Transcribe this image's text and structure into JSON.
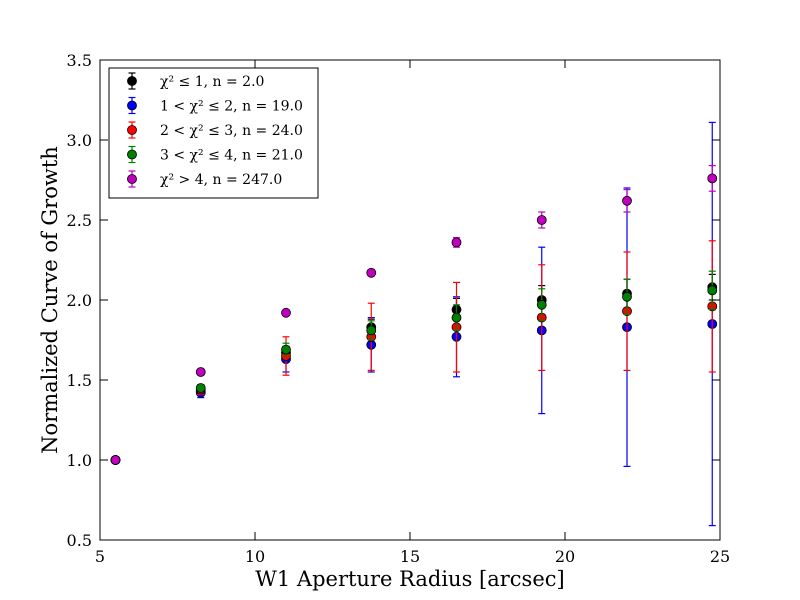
{
  "chart_data": {
    "type": "scatter",
    "title": "",
    "xlabel": "W1 Aperture Radius [arcsec]",
    "ylabel": "Normalized Curve of Growth",
    "xlim": [
      5,
      25
    ],
    "ylim": [
      0.5,
      3.5
    ],
    "xticks": [
      "5",
      "10",
      "15",
      "20",
      "25"
    ],
    "yticks": [
      "0.5",
      "1.0",
      "1.5",
      "2.0",
      "2.5",
      "3.0",
      "3.5"
    ],
    "grid": false,
    "legend_position": "top-left",
    "x": [
      5.5,
      8.25,
      11.0,
      13.75,
      16.5,
      19.25,
      22.0,
      24.75
    ],
    "series": [
      {
        "name": "χ² ≤ 1, n = 2.0",
        "color": "#000000",
        "values": [
          1.0,
          1.43,
          1.67,
          1.83,
          1.94,
          2.0,
          2.04,
          2.08
        ],
        "err": [
          0.0,
          0.01,
          0.02,
          0.05,
          0.07,
          0.09,
          0.09,
          0.08
        ]
      },
      {
        "name": "1 < χ² ≤ 2, n = 19.0",
        "color": "#0000ff",
        "values": [
          1.0,
          1.42,
          1.63,
          1.72,
          1.77,
          1.81,
          1.83,
          1.85
        ],
        "err": [
          0.0,
          0.03,
          0.08,
          0.17,
          0.25,
          0.52,
          0.87,
          1.26
        ]
      },
      {
        "name": "2 < χ² ≤ 3, n = 24.0",
        "color": "#ff0000",
        "values": [
          1.0,
          1.44,
          1.65,
          1.77,
          1.83,
          1.89,
          1.93,
          1.96
        ],
        "err": [
          0.0,
          0.03,
          0.12,
          0.21,
          0.28,
          0.33,
          0.37,
          0.41
        ]
      },
      {
        "name": "3 < χ² ≤ 4, n = 21.0",
        "color": "#008000",
        "values": [
          1.0,
          1.45,
          1.69,
          1.81,
          1.89,
          1.97,
          2.02,
          2.06
        ],
        "err": [
          0.0,
          0.02,
          0.04,
          0.06,
          0.08,
          0.1,
          0.11,
          0.12
        ]
      },
      {
        "name": "χ² > 4, n = 247.0",
        "color": "#bf00bf",
        "values": [
          1.0,
          1.55,
          1.92,
          2.17,
          2.36,
          2.5,
          2.62,
          2.76
        ],
        "err": [
          0.0,
          0.01,
          0.01,
          0.02,
          0.03,
          0.05,
          0.07,
          0.08
        ]
      }
    ]
  }
}
